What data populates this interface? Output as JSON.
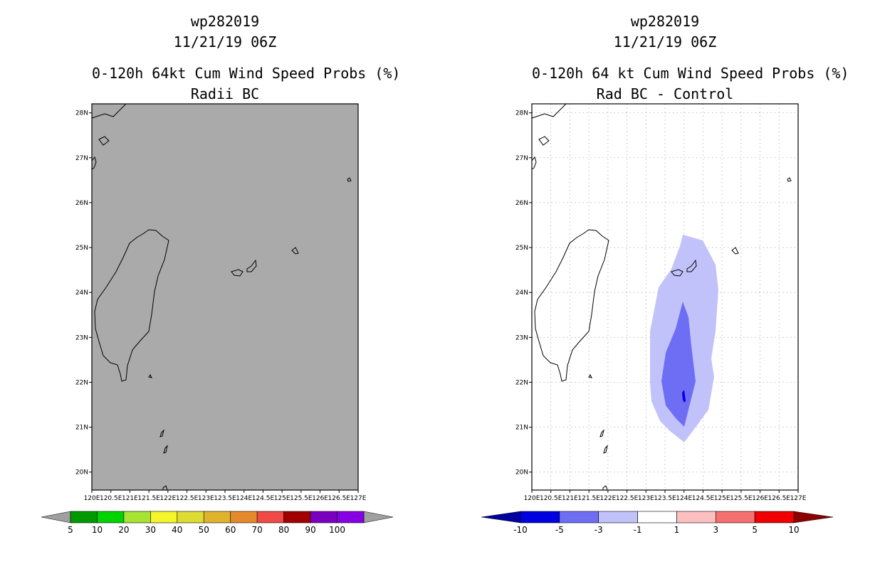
{
  "left_panel": {
    "storm_id": "wp282019",
    "datetime": "11/21/19 06Z",
    "product": "0-120h 64kt Cum Wind Speed Probs (%)",
    "subtitle": "Radii BC",
    "background_color": "#aaaaaa",
    "colorbar": {
      "labels": [
        "5",
        "10",
        "20",
        "30",
        "40",
        "50",
        "60",
        "70",
        "80",
        "90",
        "100"
      ],
      "colors": [
        "#009a00",
        "#00d400",
        "#a6e332",
        "#f5f52c",
        "#dedc32",
        "#e0b32f",
        "#e58a2b",
        "#f04a46",
        "#a10000",
        "#7a00c0",
        "#8600e4"
      ],
      "arrow_color": "#a0a0a0"
    }
  },
  "right_panel": {
    "storm_id": "wp282019",
    "datetime": "11/21/19 06Z",
    "product": "0-120h 64 kt Cum Wind Speed Probs (%)",
    "subtitle": "Rad BC - Control",
    "colorbar": {
      "labels": [
        "-10",
        "-5",
        "-3",
        "-1",
        "1",
        "3",
        "5",
        "10"
      ],
      "colors": [
        "#0000e0",
        "#6e6ef5",
        "#c2c2fa",
        "#ffffff",
        "#fcc0c0",
        "#f57070",
        "#f00000"
      ],
      "arrow_left_color": "#00009e",
      "arrow_right_color": "#8e0000"
    }
  },
  "map": {
    "lat_ticks": [
      "28N",
      "27N",
      "26N",
      "25N",
      "24N",
      "23N",
      "22N",
      "21N",
      "20N"
    ],
    "lon_ticks": [
      "120E",
      "120.5E",
      "121E",
      "121.5E",
      "122E",
      "122.5E",
      "123E",
      "123.5E",
      "124E",
      "124.5E",
      "125E",
      "125.5E",
      "126E",
      "126.5E",
      "127E"
    ],
    "lat_range": [
      19.6,
      28.2
    ],
    "lon_range": [
      120.0,
      127.0
    ]
  }
}
